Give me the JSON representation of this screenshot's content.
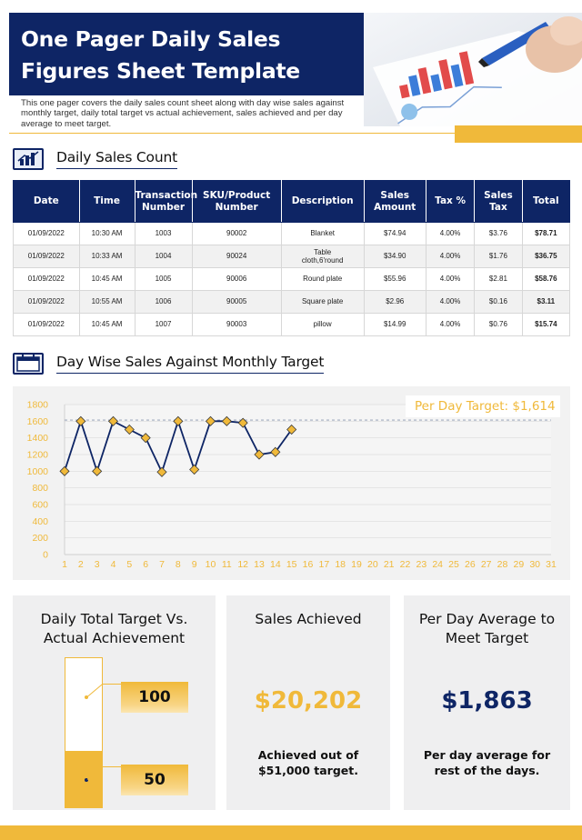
{
  "header": {
    "title": "One Pager Daily Sales Figures Sheet Template",
    "intro": "This one pager covers the daily sales count sheet along with day wise sales against monthly target, daily total target vs actual achievement, sales achieved and per day average to meet target."
  },
  "daily_sales": {
    "heading": "Daily Sales Count",
    "columns": [
      "Date",
      "Time",
      "Transaction Number",
      "SKU/Product Number",
      "Description",
      "Sales Amount",
      "Tax %",
      "Sales Tax",
      "Total"
    ],
    "rows": [
      [
        "01/09/2022",
        "10:30 AM",
        "1003",
        "90002",
        "Blanket",
        "$74.94",
        "4.00%",
        "$3.76",
        "$78.71"
      ],
      [
        "01/09/2022",
        "10:33 AM",
        "1004",
        "90024",
        "Table cloth,6'round",
        "$34.90",
        "4.00%",
        "$1.76",
        "$36.75"
      ],
      [
        "01/09/2022",
        "10:45 AM",
        "1005",
        "90006",
        "Round plate",
        "$55.96",
        "4.00%",
        "$2.81",
        "$58.76"
      ],
      [
        "01/09/2022",
        "10:55 AM",
        "1006",
        "90005",
        "Square plate",
        "$2.96",
        "4.00%",
        "$0.16",
        "$3.11"
      ],
      [
        "01/09/2022",
        "10:45 AM",
        "1007",
        "90003",
        "pillow",
        "$14.99",
        "4.00%",
        "$0.76",
        "$15.74"
      ]
    ]
  },
  "day_wise": {
    "heading": "Day Wise Sales Against Monthly Target",
    "target_label": "Per Day Target: $1,614"
  },
  "chart_data": {
    "type": "line",
    "title": "Day Wise Sales Against Monthly Target",
    "x": [
      1,
      2,
      3,
      4,
      5,
      6,
      7,
      8,
      9,
      10,
      11,
      12,
      13,
      14,
      15
    ],
    "x_ticks": [
      1,
      2,
      3,
      4,
      5,
      6,
      7,
      8,
      9,
      10,
      11,
      12,
      13,
      14,
      15,
      16,
      17,
      18,
      19,
      20,
      21,
      22,
      23,
      24,
      25,
      26,
      27,
      28,
      29,
      30,
      31
    ],
    "values": [
      1000,
      1600,
      1000,
      1600,
      1500,
      1400,
      990,
      1600,
      1020,
      1600,
      1600,
      1580,
      1200,
      1230,
      1500
    ],
    "y_ticks": [
      0,
      200,
      400,
      600,
      800,
      1000,
      1200,
      1400,
      1600,
      1800
    ],
    "ylim": [
      0,
      1800
    ],
    "xlim": [
      1,
      31
    ],
    "target": 1614,
    "line_color": "#0e2565",
    "marker_color": "#f0b93a"
  },
  "cards": {
    "target_vs_actual": {
      "title": "Daily Total Target Vs. Actual Achievement",
      "target_value": "100",
      "actual_value": "50",
      "fill_percent": 38
    },
    "sales_achieved": {
      "title": "Sales Achieved",
      "value": "$20,202",
      "note": "Achieved out of $51,000 target."
    },
    "per_day_average": {
      "title": "Per Day Average to Meet Target",
      "value": "$1,863",
      "note": "Per day average for rest of the days."
    }
  },
  "colors": {
    "navy": "#0e2565",
    "gold": "#f0b93a"
  },
  "icons": [
    "sales-chart-icon",
    "calendar-icon"
  ]
}
